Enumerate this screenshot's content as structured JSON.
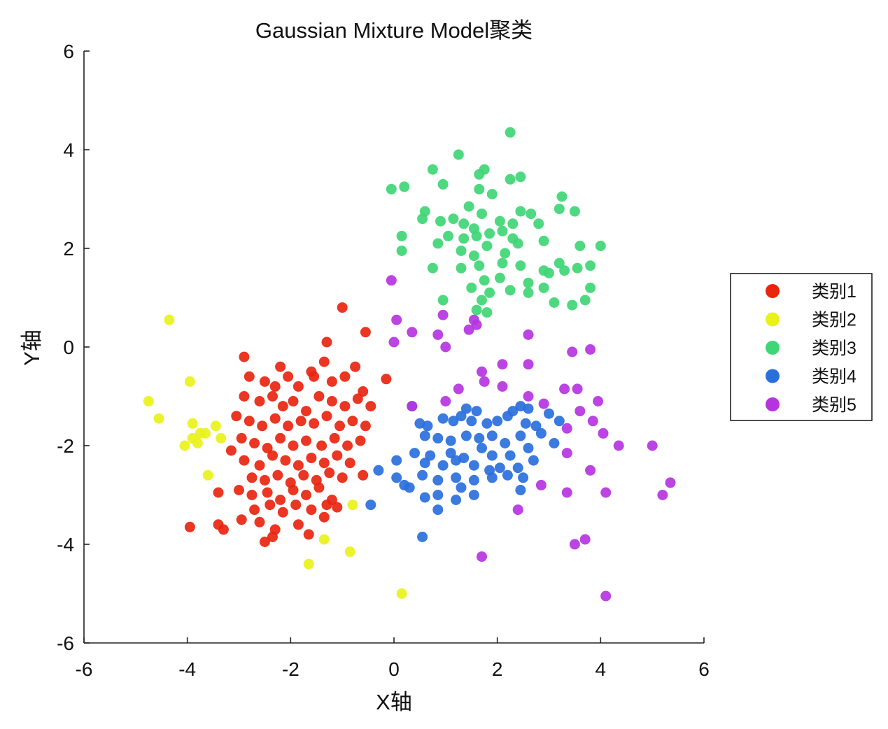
{
  "chart_data": {
    "type": "scatter",
    "title": "Gaussian Mixture Model聚类",
    "xlabel": "X轴",
    "ylabel": "Y轴",
    "xlim": [
      -6,
      6
    ],
    "ylim": [
      -6,
      6
    ],
    "xticks": [
      "-6",
      "-4",
      "-2",
      "0",
      "2",
      "4",
      "6"
    ],
    "yticks": [
      "-6",
      "-4",
      "-2",
      "0",
      "2",
      "4",
      "6"
    ],
    "grid": false,
    "legend_position": "outside-right",
    "series": [
      {
        "name": "类别1",
        "color": "#e8250f",
        "points": [
          [
            -1.0,
            0.8
          ],
          [
            -0.55,
            0.3
          ],
          [
            -1.3,
            0.1
          ],
          [
            -2.9,
            -0.2
          ],
          [
            -2.2,
            -0.4
          ],
          [
            -1.6,
            -0.5
          ],
          [
            -1.35,
            -0.3
          ],
          [
            -0.75,
            -0.4
          ],
          [
            -2.8,
            -0.6
          ],
          [
            -2.5,
            -0.7
          ],
          [
            -2.3,
            -0.8
          ],
          [
            -2.05,
            -0.6
          ],
          [
            -1.85,
            -0.8
          ],
          [
            -1.55,
            -0.6
          ],
          [
            -1.2,
            -0.7
          ],
          [
            -0.95,
            -0.6
          ],
          [
            -0.6,
            -0.9
          ],
          [
            -0.15,
            -0.65
          ],
          [
            -2.9,
            -1.0
          ],
          [
            -2.6,
            -1.1
          ],
          [
            -2.35,
            -1.0
          ],
          [
            -2.15,
            -1.2
          ],
          [
            -1.95,
            -1.1
          ],
          [
            -1.7,
            -1.3
          ],
          [
            -1.45,
            -1.0
          ],
          [
            -1.2,
            -1.1
          ],
          [
            -0.95,
            -1.2
          ],
          [
            -0.7,
            -1.05
          ],
          [
            -0.45,
            -1.2
          ],
          [
            -3.05,
            -1.4
          ],
          [
            -2.8,
            -1.5
          ],
          [
            -2.55,
            -1.6
          ],
          [
            -2.3,
            -1.45
          ],
          [
            -2.05,
            -1.6
          ],
          [
            -1.8,
            -1.5
          ],
          [
            -1.55,
            -1.55
          ],
          [
            -1.3,
            -1.4
          ],
          [
            -1.05,
            -1.6
          ],
          [
            -0.8,
            -1.5
          ],
          [
            -0.55,
            -1.6
          ],
          [
            -2.95,
            -1.85
          ],
          [
            -2.7,
            -1.95
          ],
          [
            -2.45,
            -2.05
          ],
          [
            -2.2,
            -1.85
          ],
          [
            -1.95,
            -2.0
          ],
          [
            -1.7,
            -1.9
          ],
          [
            -1.4,
            -2.0
          ],
          [
            -1.15,
            -1.85
          ],
          [
            -0.9,
            -2.0
          ],
          [
            -0.65,
            -1.9
          ],
          [
            -3.15,
            -2.1
          ],
          [
            -2.9,
            -2.3
          ],
          [
            -2.6,
            -2.4
          ],
          [
            -2.35,
            -2.2
          ],
          [
            -2.1,
            -2.3
          ],
          [
            -1.85,
            -2.4
          ],
          [
            -1.6,
            -2.25
          ],
          [
            -1.35,
            -2.35
          ],
          [
            -1.1,
            -2.2
          ],
          [
            -0.85,
            -2.35
          ],
          [
            -2.75,
            -2.65
          ],
          [
            -2.5,
            -2.7
          ],
          [
            -2.25,
            -2.6
          ],
          [
            -2.0,
            -2.75
          ],
          [
            -1.75,
            -2.6
          ],
          [
            -1.5,
            -2.7
          ],
          [
            -1.25,
            -2.55
          ],
          [
            -1.0,
            -2.65
          ],
          [
            -0.6,
            -2.6
          ],
          [
            -3.0,
            -2.9
          ],
          [
            -2.75,
            -3.0
          ],
          [
            -2.45,
            -2.95
          ],
          [
            -2.2,
            -3.1
          ],
          [
            -1.95,
            -2.9
          ],
          [
            -1.7,
            -3.0
          ],
          [
            -1.45,
            -2.85
          ],
          [
            -1.2,
            -3.1
          ],
          [
            -3.4,
            -2.95
          ],
          [
            -2.7,
            -3.3
          ],
          [
            -2.4,
            -3.2
          ],
          [
            -2.15,
            -3.35
          ],
          [
            -1.9,
            -3.2
          ],
          [
            -1.6,
            -3.3
          ],
          [
            -1.3,
            -3.2
          ],
          [
            -1.1,
            -3.25
          ],
          [
            -2.95,
            -3.5
          ],
          [
            -2.6,
            -3.55
          ],
          [
            -2.3,
            -3.7
          ],
          [
            -1.85,
            -3.6
          ],
          [
            -1.35,
            -3.45
          ],
          [
            -1.65,
            -3.8
          ],
          [
            -2.5,
            -3.95
          ],
          [
            -3.4,
            -3.6
          ],
          [
            -3.3,
            -3.7
          ],
          [
            -3.95,
            -3.65
          ],
          [
            -2.35,
            -3.85
          ]
        ]
      },
      {
        "name": "类别2",
        "color": "#e8f21a",
        "points": [
          [
            -4.35,
            0.55
          ],
          [
            -3.95,
            -0.7
          ],
          [
            -4.75,
            -1.1
          ],
          [
            -4.55,
            -1.45
          ],
          [
            -3.9,
            -1.55
          ],
          [
            -3.75,
            -1.75
          ],
          [
            -3.9,
            -1.85
          ],
          [
            -3.65,
            -1.75
          ],
          [
            -4.05,
            -2.0
          ],
          [
            -3.8,
            -1.95
          ],
          [
            -3.45,
            -1.6
          ],
          [
            -3.35,
            -1.85
          ],
          [
            -3.6,
            -2.6
          ],
          [
            -0.8,
            -3.2
          ],
          [
            -1.35,
            -3.9
          ],
          [
            -1.65,
            -4.4
          ],
          [
            -0.85,
            -4.15
          ],
          [
            0.15,
            -5.0
          ]
        ]
      },
      {
        "name": "类别3",
        "color": "#3fd676",
        "points": [
          [
            2.25,
            4.35
          ],
          [
            1.25,
            3.9
          ],
          [
            0.75,
            3.6
          ],
          [
            1.75,
            3.6
          ],
          [
            -0.05,
            3.2
          ],
          [
            0.2,
            3.25
          ],
          [
            0.95,
            3.3
          ],
          [
            1.65,
            3.5
          ],
          [
            2.25,
            3.4
          ],
          [
            2.45,
            3.45
          ],
          [
            1.65,
            3.2
          ],
          [
            1.9,
            3.1
          ],
          [
            3.25,
            3.05
          ],
          [
            1.45,
            2.85
          ],
          [
            1.7,
            2.7
          ],
          [
            3.2,
            2.8
          ],
          [
            3.5,
            2.75
          ],
          [
            0.55,
            2.6
          ],
          [
            0.6,
            2.75
          ],
          [
            0.9,
            2.55
          ],
          [
            1.15,
            2.6
          ],
          [
            1.35,
            2.5
          ],
          [
            1.55,
            2.4
          ],
          [
            2.05,
            2.55
          ],
          [
            2.3,
            2.5
          ],
          [
            2.45,
            2.75
          ],
          [
            2.65,
            2.7
          ],
          [
            2.8,
            2.5
          ],
          [
            0.15,
            2.25
          ],
          [
            0.85,
            2.1
          ],
          [
            1.05,
            2.25
          ],
          [
            1.35,
            2.2
          ],
          [
            1.6,
            2.25
          ],
          [
            1.85,
            2.3
          ],
          [
            2.1,
            2.35
          ],
          [
            2.3,
            2.2
          ],
          [
            0.15,
            1.95
          ],
          [
            1.3,
            1.95
          ],
          [
            1.55,
            1.85
          ],
          [
            1.8,
            2.05
          ],
          [
            2.15,
            1.9
          ],
          [
            2.4,
            2.1
          ],
          [
            2.9,
            2.15
          ],
          [
            3.6,
            2.05
          ],
          [
            4.0,
            2.05
          ],
          [
            0.75,
            1.6
          ],
          [
            1.3,
            1.6
          ],
          [
            1.65,
            1.65
          ],
          [
            2.1,
            1.7
          ],
          [
            2.45,
            1.65
          ],
          [
            2.9,
            1.55
          ],
          [
            3.2,
            1.7
          ],
          [
            3.55,
            1.6
          ],
          [
            3.8,
            1.65
          ],
          [
            1.75,
            1.35
          ],
          [
            2.05,
            1.4
          ],
          [
            2.6,
            1.3
          ],
          [
            3.0,
            1.5
          ],
          [
            3.3,
            1.55
          ],
          [
            1.5,
            1.2
          ],
          [
            1.85,
            1.1
          ],
          [
            2.25,
            1.15
          ],
          [
            2.6,
            1.1
          ],
          [
            2.9,
            1.2
          ],
          [
            3.8,
            1.2
          ],
          [
            1.7,
            0.95
          ],
          [
            3.1,
            0.9
          ],
          [
            3.45,
            0.85
          ],
          [
            3.7,
            0.95
          ],
          [
            1.6,
            0.75
          ],
          [
            0.95,
            0.95
          ],
          [
            1.8,
            0.7
          ]
        ]
      },
      {
        "name": "类别4",
        "color": "#2a6fdc",
        "points": [
          [
            1.4,
            -1.25
          ],
          [
            1.6,
            -1.3
          ],
          [
            2.3,
            -1.3
          ],
          [
            2.45,
            -1.2
          ],
          [
            2.6,
            -1.25
          ],
          [
            0.35,
            -1.2
          ],
          [
            0.5,
            -1.55
          ],
          [
            0.65,
            -1.6
          ],
          [
            0.95,
            -1.45
          ],
          [
            1.15,
            -1.5
          ],
          [
            1.3,
            -1.4
          ],
          [
            1.5,
            -1.5
          ],
          [
            1.8,
            -1.55
          ],
          [
            2.0,
            -1.5
          ],
          [
            2.2,
            -1.4
          ],
          [
            2.55,
            -1.55
          ],
          [
            2.75,
            -1.6
          ],
          [
            3.0,
            -1.35
          ],
          [
            3.2,
            -1.5
          ],
          [
            0.6,
            -1.8
          ],
          [
            0.85,
            -1.85
          ],
          [
            1.1,
            -1.9
          ],
          [
            1.4,
            -1.8
          ],
          [
            1.65,
            -1.85
          ],
          [
            1.9,
            -1.8
          ],
          [
            2.15,
            -1.95
          ],
          [
            2.45,
            -1.8
          ],
          [
            2.85,
            -1.75
          ],
          [
            0.4,
            -2.15
          ],
          [
            0.7,
            -2.2
          ],
          [
            1.1,
            -2.15
          ],
          [
            1.35,
            -2.25
          ],
          [
            1.7,
            -2.05
          ],
          [
            1.9,
            -2.2
          ],
          [
            2.25,
            -2.2
          ],
          [
            2.6,
            -2.05
          ],
          [
            3.1,
            -1.95
          ],
          [
            0.05,
            -2.3
          ],
          [
            0.6,
            -2.35
          ],
          [
            0.95,
            -2.4
          ],
          [
            1.2,
            -2.3
          ],
          [
            1.55,
            -2.4
          ],
          [
            1.85,
            -2.5
          ],
          [
            2.05,
            -2.45
          ],
          [
            2.4,
            -2.45
          ],
          [
            2.7,
            -2.3
          ],
          [
            -0.3,
            -2.5
          ],
          [
            0.05,
            -2.65
          ],
          [
            0.55,
            -2.6
          ],
          [
            0.85,
            -2.7
          ],
          [
            1.2,
            -2.65
          ],
          [
            1.55,
            -2.7
          ],
          [
            1.9,
            -2.65
          ],
          [
            2.2,
            -2.6
          ],
          [
            2.5,
            -2.65
          ],
          [
            0.2,
            -2.8
          ],
          [
            0.3,
            -2.85
          ],
          [
            0.6,
            -3.05
          ],
          [
            0.85,
            -3.0
          ],
          [
            1.2,
            -3.1
          ],
          [
            1.55,
            -3.0
          ],
          [
            1.3,
            -2.85
          ],
          [
            2.45,
            -2.9
          ],
          [
            -0.45,
            -3.2
          ],
          [
            0.85,
            -3.3
          ],
          [
            0.55,
            -3.85
          ]
        ]
      },
      {
        "name": "类别5",
        "color": "#b534e0",
        "points": [
          [
            -0.05,
            1.35
          ],
          [
            0.05,
            0.55
          ],
          [
            0.35,
            0.3
          ],
          [
            0.85,
            0.25
          ],
          [
            0.95,
            0.65
          ],
          [
            1.45,
            0.35
          ],
          [
            1.55,
            0.55
          ],
          [
            1.6,
            0.45
          ],
          [
            0.0,
            0.1
          ],
          [
            1.0,
            0.0
          ],
          [
            2.6,
            0.25
          ],
          [
            3.45,
            -0.1
          ],
          [
            3.8,
            -0.05
          ],
          [
            1.7,
            -0.5
          ],
          [
            2.1,
            -0.35
          ],
          [
            2.6,
            -0.35
          ],
          [
            1.75,
            -0.7
          ],
          [
            1.25,
            -0.85
          ],
          [
            2.1,
            -0.8
          ],
          [
            3.3,
            -0.85
          ],
          [
            3.55,
            -0.85
          ],
          [
            1.0,
            -1.1
          ],
          [
            2.6,
            -1.0
          ],
          [
            2.9,
            -1.15
          ],
          [
            3.95,
            -1.1
          ],
          [
            0.35,
            -1.2
          ],
          [
            3.6,
            -1.3
          ],
          [
            3.85,
            -1.5
          ],
          [
            3.35,
            -1.65
          ],
          [
            4.05,
            -1.75
          ],
          [
            4.35,
            -2.0
          ],
          [
            5.0,
            -2.0
          ],
          [
            3.35,
            -2.15
          ],
          [
            3.8,
            -2.5
          ],
          [
            5.35,
            -2.75
          ],
          [
            2.85,
            -2.8
          ],
          [
            3.35,
            -2.95
          ],
          [
            4.1,
            -2.95
          ],
          [
            5.2,
            -3.0
          ],
          [
            2.4,
            -3.3
          ],
          [
            3.7,
            -3.9
          ],
          [
            3.5,
            -4.0
          ],
          [
            1.7,
            -4.25
          ],
          [
            4.1,
            -5.05
          ]
        ]
      }
    ]
  }
}
